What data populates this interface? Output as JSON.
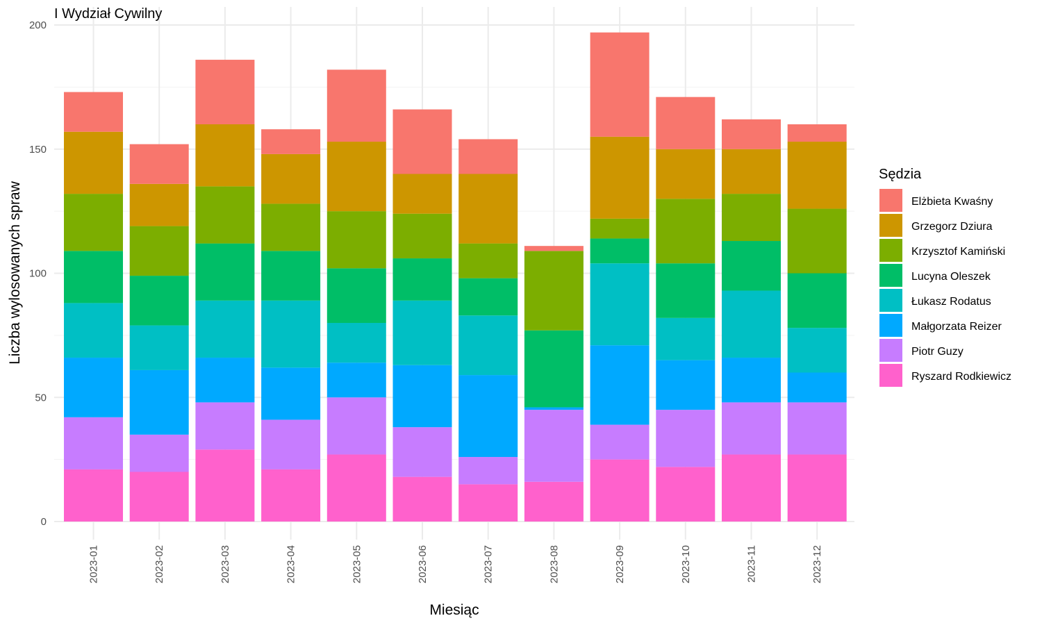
{
  "chart_data": {
    "type": "bar",
    "stacked": true,
    "title": "I Wydział Cywilny",
    "xlabel": "Miesiąc",
    "ylabel": "Liczba wylosowanych spraw",
    "ylim": [
      0,
      200
    ],
    "yticks": [
      0,
      50,
      100,
      150,
      200
    ],
    "grid": true,
    "legend_title": "Sędzia",
    "legend_position": "right",
    "categories": [
      "2023-01",
      "2023-02",
      "2023-03",
      "2023-04",
      "2023-05",
      "2023-06",
      "2023-07",
      "2023-08",
      "2023-09",
      "2023-10",
      "2023-11",
      "2023-12"
    ],
    "series": [
      {
        "name": "Ryszard Rodkiewicz",
        "color": "#FF61CC",
        "values": [
          21,
          20,
          29,
          21,
          27,
          18,
          15,
          16,
          25,
          22,
          27,
          27
        ]
      },
      {
        "name": "Piotr Guzy",
        "color": "#C77CFF",
        "values": [
          21,
          15,
          19,
          20,
          23,
          20,
          11,
          29,
          14,
          23,
          21,
          21
        ]
      },
      {
        "name": "Małgorzata Reizer",
        "color": "#00A9FF",
        "values": [
          24,
          26,
          18,
          21,
          14,
          25,
          33,
          1,
          32,
          20,
          18,
          12
        ]
      },
      {
        "name": "Łukasz Rodatus",
        "color": "#00BFC4",
        "values": [
          22,
          18,
          23,
          27,
          16,
          26,
          24,
          0,
          33,
          17,
          27,
          18
        ]
      },
      {
        "name": "Lucyna Oleszek",
        "color": "#00BE67",
        "values": [
          21,
          20,
          23,
          20,
          22,
          17,
          15,
          31,
          10,
          22,
          20,
          22
        ]
      },
      {
        "name": "Krzysztof Kamiński",
        "color": "#7CAE00",
        "values": [
          23,
          20,
          23,
          19,
          23,
          18,
          14,
          32,
          8,
          26,
          19,
          26
        ]
      },
      {
        "name": "Grzegorz Dziura",
        "color": "#CD9600",
        "values": [
          25,
          17,
          25,
          20,
          28,
          16,
          28,
          0,
          33,
          20,
          18,
          27
        ]
      },
      {
        "name": "Elżbieta Kwaśny",
        "color": "#F8766D",
        "values": [
          16,
          16,
          26,
          10,
          29,
          26,
          14,
          2,
          42,
          21,
          12,
          7
        ]
      }
    ],
    "legend_order": [
      "Elżbieta Kwaśny",
      "Grzegorz Dziura",
      "Krzysztof Kamiński",
      "Lucyna Oleszek",
      "Łukasz Rodatus",
      "Małgorzata Reizer",
      "Piotr Guzy",
      "Ryszard Rodkiewicz"
    ]
  }
}
